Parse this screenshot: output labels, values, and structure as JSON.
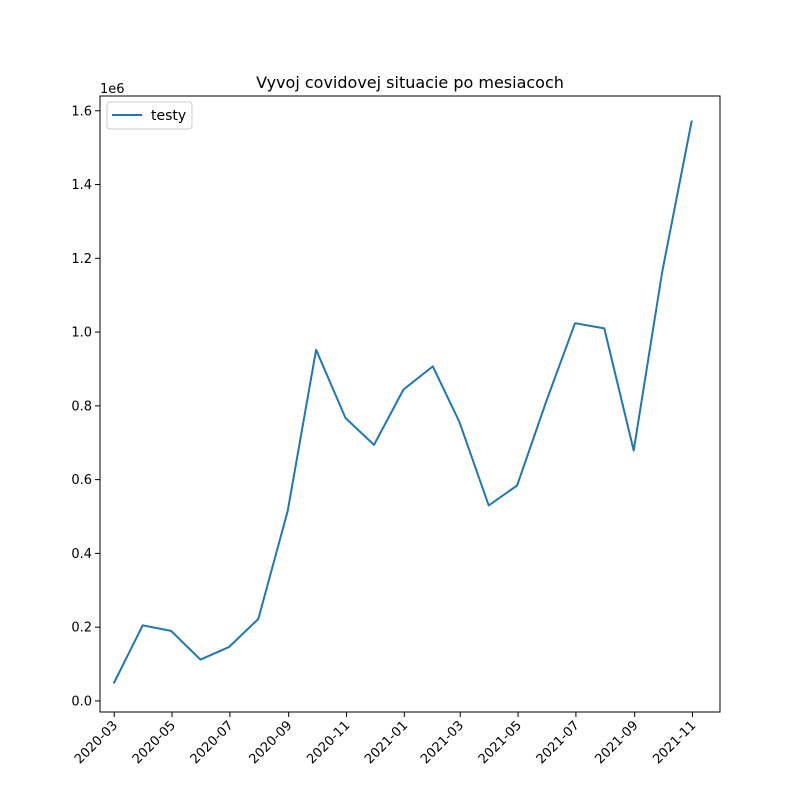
{
  "chart_data": {
    "type": "line",
    "title": "Vyvoj covidovej situacie po mesiacoch",
    "xlabel": "",
    "ylabel": "",
    "y_offset_label": "1e6",
    "ylim": [
      -0.03,
      1.64
    ],
    "xlim": [
      "2020-02-15",
      "2021-11-30"
    ],
    "y_ticks": [
      0.0,
      0.2,
      0.4,
      0.6,
      0.8,
      1.0,
      1.2,
      1.4,
      1.6
    ],
    "y_tick_labels": [
      "0.0",
      "0.2",
      "0.4",
      "0.6",
      "0.8",
      "1.0",
      "1.2",
      "1.4",
      "1.6"
    ],
    "x_ticks": [
      "2020-03-01",
      "2020-05-01",
      "2020-07-01",
      "2020-09-01",
      "2020-11-01",
      "2021-01-01",
      "2021-03-01",
      "2021-05-01",
      "2021-07-01",
      "2021-09-01",
      "2021-11-01"
    ],
    "x_tick_labels": [
      "2020-03",
      "2020-05",
      "2020-07",
      "2020-09",
      "2020-11",
      "2021-01",
      "2021-03",
      "2021-05",
      "2021-07",
      "2021-09",
      "2021-11"
    ],
    "legend_position": "top-left",
    "grid": false,
    "series": [
      {
        "name": "testy",
        "color": "#1f77b4",
        "x": [
          "2020-03-01",
          "2020-03-31",
          "2020-04-30",
          "2020-05-31",
          "2020-06-30",
          "2020-07-31",
          "2020-08-31",
          "2020-09-30",
          "2020-10-31",
          "2020-11-30",
          "2020-12-31",
          "2021-01-31",
          "2021-02-28",
          "2021-03-31",
          "2021-04-30",
          "2021-05-31",
          "2021-06-30",
          "2021-07-31",
          "2021-08-31",
          "2021-09-30",
          "2021-10-31"
        ],
        "values": [
          0.05,
          0.205,
          0.19,
          0.112,
          0.146,
          0.222,
          0.515,
          0.952,
          0.767,
          0.694,
          0.844,
          0.907,
          0.757,
          0.53,
          0.584,
          0.814,
          1.024,
          1.01,
          0.679,
          1.163,
          1.571
        ]
      }
    ]
  }
}
